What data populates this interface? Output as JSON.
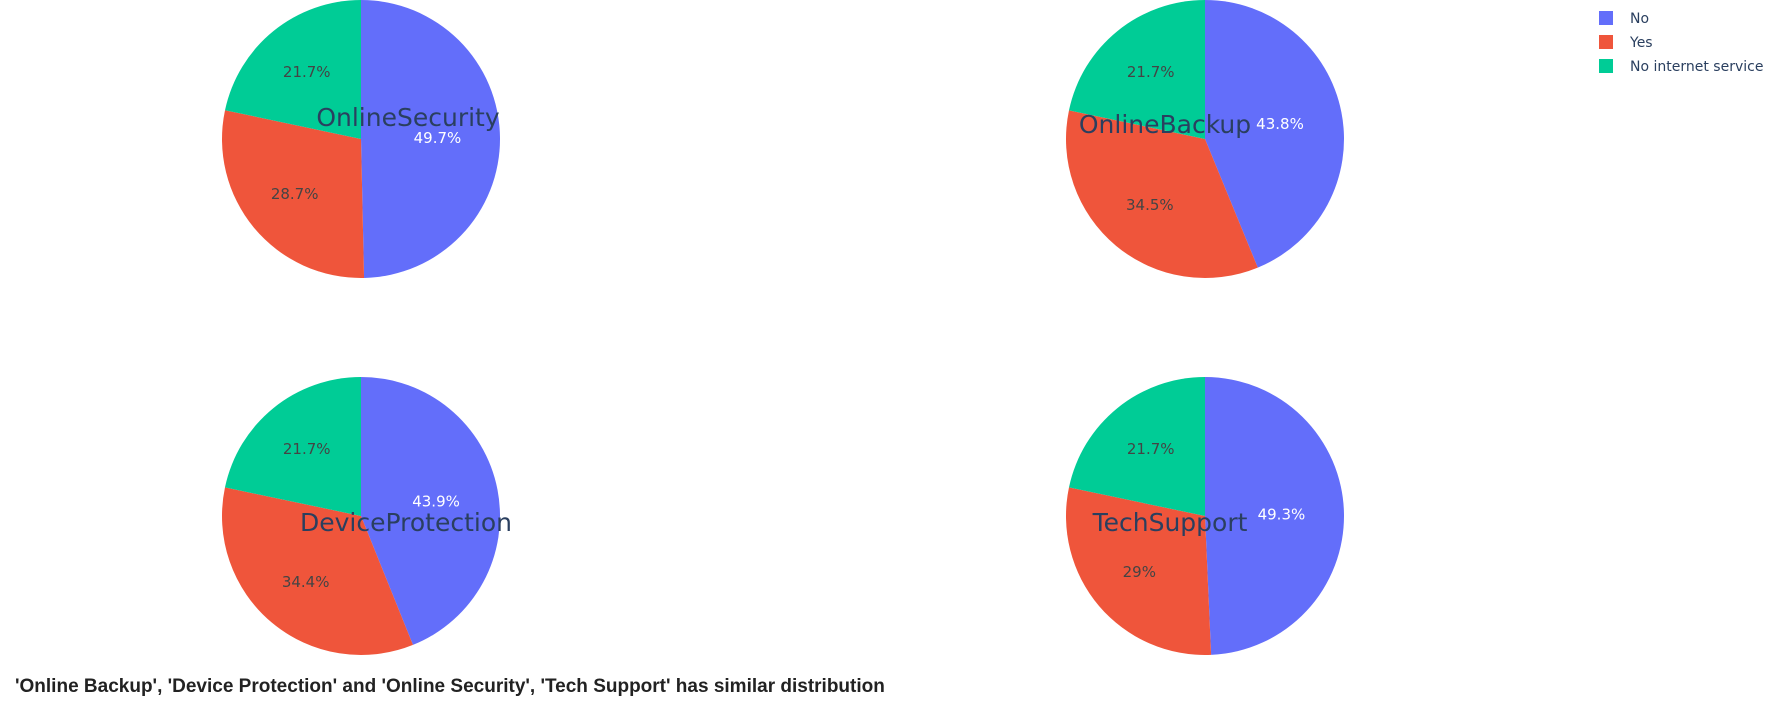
{
  "chart_data": [
    {
      "type": "pie",
      "title": "OnlineSecurity",
      "labels": [
        "No",
        "Yes",
        "No internet service"
      ],
      "values": [
        49.7,
        28.7,
        21.7
      ],
      "text_labels": [
        "49.7%",
        "28.7%",
        "21.7%"
      ]
    },
    {
      "type": "pie",
      "title": "OnlineBackup",
      "labels": [
        "No",
        "Yes",
        "No internet service"
      ],
      "values": [
        43.8,
        34.5,
        21.7
      ],
      "text_labels": [
        "43.8%",
        "34.5%",
        "21.7%"
      ]
    },
    {
      "type": "pie",
      "title": "DeviceProtection",
      "labels": [
        "No",
        "Yes",
        "No internet service"
      ],
      "values": [
        43.9,
        34.4,
        21.7
      ],
      "text_labels": [
        "43.9%",
        "34.4%",
        "21.7%"
      ]
    },
    {
      "type": "pie",
      "title": "TechSupport",
      "labels": [
        "No",
        "Yes",
        "No internet service"
      ],
      "values": [
        49.3,
        29,
        21.7
      ],
      "text_labels": [
        "49.3%",
        "29%",
        "21.7%"
      ]
    }
  ],
  "legend": {
    "placement": "top-right",
    "items": [
      {
        "label": "No",
        "color": "#636efa"
      },
      {
        "label": "Yes",
        "color": "#ef553b"
      },
      {
        "label": "No internet service",
        "color": "#00cc96"
      }
    ]
  },
  "caption": "'Online Backup', 'Device Protection' and 'Online Security', 'Tech Support' has similar distribution"
}
